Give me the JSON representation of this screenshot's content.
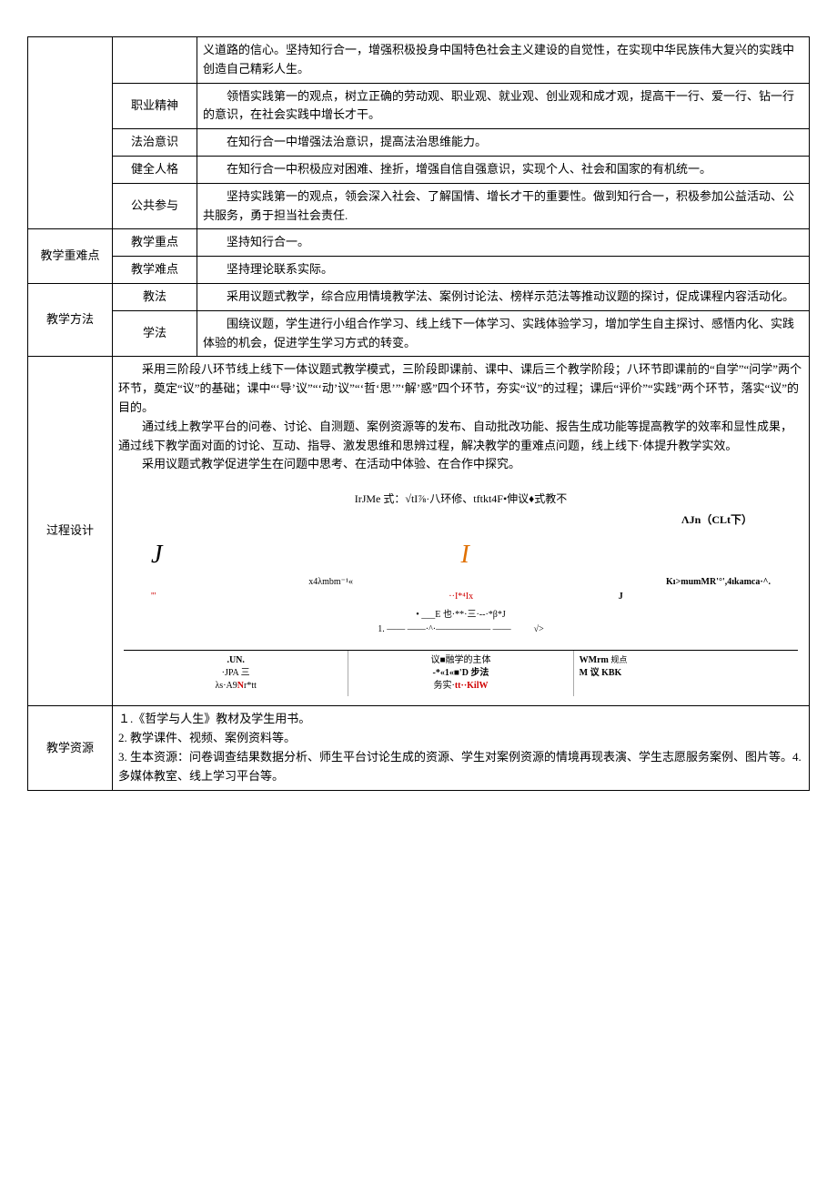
{
  "r0_col3": "义道路的信心。坚持知行合一，增强积极投身中国特色社会主义建设的自觉性，在实现中华民族伟大复兴的实践中创造自己精彩人生。",
  "r1_col2": "职业精神",
  "r1_col3": "　　领悟实践第一的观点，树立正确的劳动观、职业观、就业观、创业观和成才观，提高干一行、爱一行、钻一行的意识，在社会实践中增长才干。",
  "r2_col2": "法治意识",
  "r2_col3": "　　在知行合一中增强法治意识，提高法治思维能力。",
  "r3_col2": "健全人格",
  "r3_col3": "　　在知行合一中积极应对困难、挫折，增强自信自强意识，实现个人、社会和国家的有机统一。",
  "r4_col2": "公共参与",
  "r4_col3": "　　坚持实践第一的观点，领会深入社会、了解国情、增长才干的重要性。做到知行合一，积极参加公益活动、公共服务，勇于担当社会责任.",
  "r5_col1": "教学重难点",
  "r5_col2": "教学重点",
  "r5_col3": "　　坚持知行合一。",
  "r6_col2": "教学难点",
  "r6_col3": "　　坚持理论联系实际。",
  "r7_col1": "教学方法",
  "r7_col2": "教法",
  "r7_col3": "　　采用议题式教学，综合应用情境教学法、案例讨论法、榜样示范法等推动议题的探讨，促成课程内容活动化。",
  "r8_col2": "学法",
  "r8_col3": "　　围绕议题，学生进行小组合作学习、线上线下一体学习、实践体验学习，增加学生自主探讨、感悟内化、实践体验的机会，促进学生学习方式的转变。",
  "r9_col1": "过程设计",
  "r9_p1": "采用三阶段八环节线上线下一体议题式教学模式，三阶段即课前、课中、课后三个教学阶段；八环节即课前的“自学”“问学”两个环节，奠定“议”的基础；课中“‘导’议”“‘动’议”“‘哲‘思’”‘解’惑”四个环节，夯实“议”的过程；课后“评价”“实践”两个环节，落实“议”的目的。",
  "r9_p2": "通过线上教学平台的问卷、讨论、自测题、案例资源等的发布、自动批改功能、报告生成功能等提高教学的效率和显性成果，通过线下教学面对面的讨论、互动、指导、激发思维和思辨过程，解决教学的重难点问题，线上线下·体提升教学实效。",
  "r9_p3": "采用议题式教学促进学生在问题中思考、在活动中体验、在合作中探究。",
  "diagram_title": "IrJMe 式：√tI⅞·八环修、tftkt4F•伸议♦式教不",
  "diagram_sub": "ΛJn（CLt下）",
  "diagram_J": "J",
  "diagram_I": "I",
  "diagram_mid1": "x4λmbm⁻¹«",
  "diagram_mid_quote": "'''",
  "diagram_mid2": "··I*⁴Iх",
  "diagram_right1": "Kı>mumMR'°',4ıkamca·^.",
  "diagram_J2": "J",
  "diagram_line1": "• ___E 也·**·三·--·*β*J",
  "diagram_line2": "1. —— ——·^·——————  ——",
  "diagram_sqrt": "√>",
  "bot1_l1": ".UN.",
  "bot1_l2": "·JPA 三",
  "bot1_l3a": "λs·A9",
  "bot1_l3b": "N",
  "bot1_l3c": "r*tt",
  "bot2_l1": "议■融学的主体",
  "bot2_l2": "-*«1«■'D 步法",
  "bot2_l3a": "务实·",
  "bot2_l3b": "tt··KilW",
  "bot3_l1a": "WMrm ",
  "bot3_l1b": "规点",
  "bot3_l2a": "M 议 ",
  "bot3_l2b": "KBK",
  "r10_col1": "教学资源",
  "r10_l1": "１.《哲学与人生》教材及学生用书。",
  "r10_l2": "2. 教学课件、视频、案例资料等。",
  "r10_l3": "3. 生本资源：问卷调查结果数据分析、师生平台讨论生成的资源、学生对案例资源的情境再现表演、学生志愿服务案例、图片等。4.多媒体教室、线上学习平台等。"
}
